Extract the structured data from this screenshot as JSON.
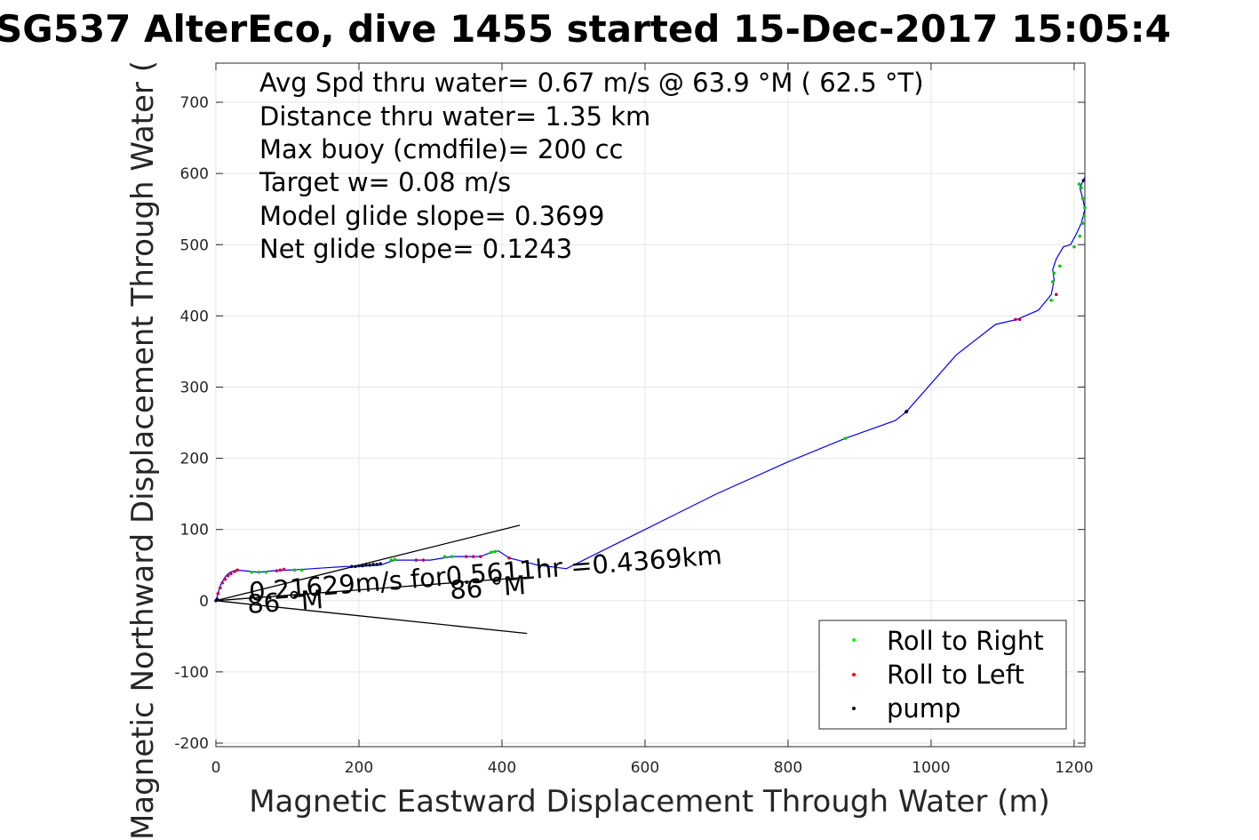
{
  "chart_data": {
    "type": "line",
    "title": "SG537 AlterEco, dive 1455 started 15-Dec-2017 15:05:4",
    "xlabel": "Magnetic Eastward Displacement Through Water (m)",
    "ylabel": "Magnetic Northward Displacement Through Water (",
    "xlim": [
      0,
      1215
    ],
    "ylim": [
      -205,
      755
    ],
    "xticks": [
      0,
      200,
      400,
      600,
      800,
      1000,
      1200
    ],
    "yticks": [
      -200,
      -100,
      0,
      100,
      200,
      300,
      400,
      500,
      600,
      700
    ],
    "grid": true,
    "legend_position": "bottom-right",
    "annotations": [
      "Avg Spd thru water=  0.67 m/s @  63.9 °M ( 62.5 °T)",
      "Distance thru water=  1.35 km",
      "Max buoy (cmdfile)= 200 cc",
      "Target w= 0.08 m/s",
      "Model glide slope= 0.3699",
      "Net glide slope= 0.1243"
    ],
    "current_label": "0.21629m/s for0.5611hr =0.4369km",
    "heading_labels": [
      "86 °M",
      "86 °M"
    ],
    "track_color": "#0000ff",
    "track": {
      "x": [
        0,
        3,
        5,
        8,
        12,
        16,
        20,
        25,
        30,
        40,
        60,
        80,
        100,
        120,
        150,
        180,
        200,
        230,
        250,
        280,
        300,
        330,
        350,
        370,
        385,
        395,
        410,
        450,
        490,
        540,
        600,
        700,
        800,
        880,
        950,
        965,
        1035,
        1090,
        1120,
        1150,
        1168,
        1172,
        1170,
        1175,
        1185,
        1195,
        1203,
        1210,
        1215,
        1212,
        1208,
        1215
      ],
      "y": [
        0,
        10,
        18,
        25,
        32,
        37,
        40,
        42,
        43,
        42,
        40,
        42,
        43,
        44,
        46,
        48,
        48,
        50,
        57,
        57,
        57,
        62,
        62,
        62,
        68,
        70,
        60,
        50,
        45,
        70,
        100,
        150,
        195,
        228,
        253,
        265,
        345,
        388,
        395,
        408,
        430,
        450,
        465,
        480,
        497,
        500,
        515,
        530,
        550,
        565,
        580,
        595
      ]
    },
    "legend_entries": [
      {
        "label": "Roll to Right",
        "color": "#00ff00"
      },
      {
        "label": "Roll to Left",
        "color": "#ff0000"
      },
      {
        "label": "pump",
        "color": "#000000"
      }
    ],
    "roll_right_points": {
      "x": [
        50,
        60,
        70,
        110,
        120,
        245,
        250,
        320,
        330,
        385,
        390,
        880,
        1168,
        1170,
        1172,
        1180,
        1200,
        1208,
        1212,
        1214,
        1215,
        1212,
        1210,
        1207
      ],
      "y": [
        40,
        40,
        40,
        43,
        43,
        57,
        58,
        62,
        62,
        68,
        69,
        228,
        422,
        448,
        460,
        470,
        497,
        512,
        530,
        540,
        552,
        565,
        580,
        585
      ]
    },
    "roll_left_points": {
      "x": [
        3,
        6,
        9,
        13,
        17,
        21,
        26,
        30,
        85,
        90,
        95,
        280,
        290,
        350,
        360,
        370,
        410,
        1118,
        1124,
        1175
      ],
      "y": [
        10,
        18,
        25,
        30,
        35,
        38,
        41,
        43,
        42,
        43,
        44,
        57,
        57,
        62,
        62,
        62,
        60,
        395,
        395,
        430
      ]
    },
    "pump_points": {
      "x": [
        0,
        1,
        2,
        190,
        195,
        200,
        205,
        210,
        215,
        220,
        225,
        230,
        965,
        966,
        1213
      ],
      "y": [
        0,
        1,
        2,
        48,
        48,
        49,
        49,
        50,
        50,
        51,
        51,
        52,
        265,
        266,
        590
      ]
    },
    "current_vector": {
      "x": [
        0,
        435
      ],
      "y": [
        0,
        33
      ]
    },
    "heading_wedge": {
      "x": [
        435,
        0,
        425
      ],
      "y": [
        -46,
        0,
        106
      ]
    }
  }
}
